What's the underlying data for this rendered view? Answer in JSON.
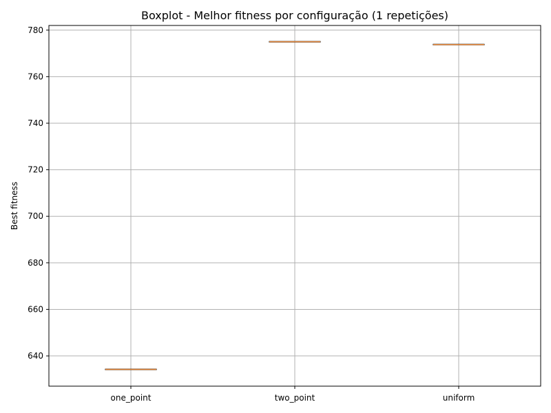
{
  "chart_data": {
    "type": "boxplot",
    "title": "Boxplot - Melhor fitness por configuração (1 repetições)",
    "xlabel": "",
    "ylabel": "Best fitness",
    "categories": [
      "one_point",
      "two_point",
      "uniform"
    ],
    "values": [
      634.2,
      775.0,
      773.8
    ],
    "ylim": [
      627,
      782
    ],
    "yticks": [
      640,
      660,
      680,
      700,
      720,
      740,
      760,
      780
    ],
    "grid": true,
    "colors": {
      "median": "#e8883a",
      "box": "#000000",
      "grid": "#b0b0b0"
    }
  }
}
